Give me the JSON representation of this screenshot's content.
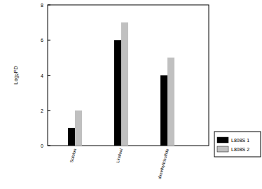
{
  "chart_data": {
    "type": "bar",
    "y_label": "Log₂FD",
    "categories": [
      "Sotolon",
      "Linalool",
      "dimethyltrisulfide"
    ],
    "series": [
      {
        "name": "L808S 1",
        "color": "#000000",
        "values": [
          1,
          6,
          4
        ]
      },
      {
        "name": "L808S 2",
        "color": "#c0c0c0",
        "values": [
          2,
          7,
          5
        ]
      }
    ],
    "ylim": [
      0,
      8
    ],
    "yticks": [
      0,
      2,
      4,
      6,
      8
    ],
    "grid": false,
    "legend": "right"
  }
}
